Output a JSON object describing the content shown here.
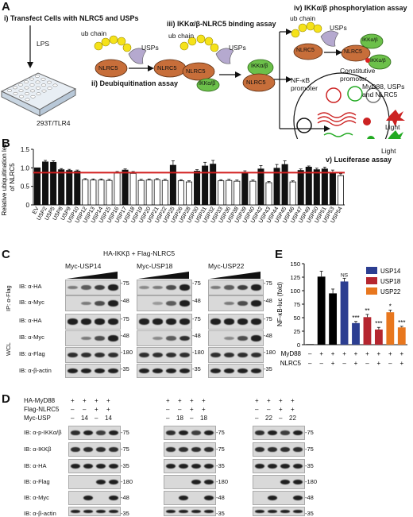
{
  "panelA": {
    "letter": "A",
    "step1": "i) Transfect Cells with NLRC5 and USPs",
    "lps": "LPS",
    "cell_line": "293T/TLR4",
    "step2": "ii) Deubiquitination assay",
    "step3": "iii) IKKα/β-NLRC5 binding assay",
    "step4": "iv) IKKα/β phosphorylation assay",
    "step5": "v) Luciferase assay",
    "ub_chain": "ub chain",
    "usps": "USPs",
    "nlrc5": "NLRC5",
    "ikk": "IKKα/β",
    "nfkb_promoter": "NF-κB promoter",
    "constitutive_promoter": "Constitutive promoter",
    "myd88_usps_nlrc5": "MyD88, USPs and NLRC5",
    "light": "Light"
  },
  "panelB": {
    "letter": "B",
    "chart_data": {
      "type": "bar",
      "ylabel": "Relative ubiquitination level of NLRC5",
      "ylim": [
        0,
        1.5
      ],
      "yticks": [
        0,
        0.5,
        1.0,
        1.5
      ],
      "ytick_labels": [
        "0",
        "0.5",
        "1.0",
        "1.5"
      ],
      "threshold": 0.87,
      "categories": [
        "EV",
        "USP2",
        "USP5",
        "USP8",
        "USP9",
        "USP10",
        "USP12",
        "USP13",
        "USP14",
        "USP15",
        "USP16",
        "USP17",
        "USP18",
        "USP19",
        "USP20",
        "USP21",
        "USP22",
        "USP25",
        "USP26",
        "USP28",
        "USP30",
        "USP31",
        "USP32",
        "USP33",
        "USP36",
        "USP38",
        "USP39",
        "USP40",
        "USP42",
        "USP43",
        "USP44",
        "USP45",
        "USP46",
        "USP47",
        "USP49",
        "USP50",
        "USP51",
        "USP53",
        "USP54"
      ],
      "values": [
        1.0,
        1.16,
        1.15,
        0.95,
        0.93,
        0.91,
        0.68,
        0.67,
        0.67,
        0.66,
        0.86,
        0.94,
        0.85,
        0.66,
        0.67,
        0.68,
        0.66,
        1.07,
        0.65,
        0.62,
        0.91,
        1.05,
        1.1,
        0.65,
        0.66,
        0.64,
        0.87,
        0.64,
        0.97,
        0.6,
        0.99,
        1.09,
        0.62,
        0.93,
        1.02,
        0.95,
        0.97,
        0.88,
        0.79
      ],
      "errors": [
        0,
        0.04,
        0.04,
        0.03,
        0.03,
        0.03,
        0.03,
        0.03,
        0.03,
        0.03,
        0.04,
        0.03,
        0.05,
        0.03,
        0.03,
        0.03,
        0.03,
        0.12,
        0.03,
        0.03,
        0.04,
        0.1,
        0.1,
        0.03,
        0.03,
        0.03,
        0.05,
        0.03,
        0.09,
        0.03,
        0.1,
        0.1,
        0.03,
        0.04,
        0.03,
        0.04,
        0.05,
        0.06,
        0.05
      ]
    }
  },
  "panelC": {
    "letter": "C",
    "header": "HA-IKKβ + Flag-NLRC5",
    "groups": [
      "Myc-USP14",
      "Myc-USP18",
      "Myc-USP22"
    ],
    "ip": "IP: α-Flag",
    "wcl": "WCL",
    "rows": [
      "IB: α-HA",
      "IB: α-Myc",
      "IB: α-HA",
      "IB: α-Myc",
      "IB: α-Flag",
      "IB: α-β-actin"
    ],
    "mw": [
      [
        "75",
        "48"
      ],
      [
        "-48"
      ],
      [
        "-75"
      ],
      [
        "-48"
      ],
      [
        "-180"
      ],
      [
        "-35"
      ]
    ],
    "mw_labels": [
      "75",
      "48",
      "48",
      "75",
      "48",
      "180",
      "35"
    ]
  },
  "panelD": {
    "letter": "D",
    "row_labels": [
      "HA-MyD88",
      "Flag-NLRC5",
      "Myc-USP"
    ],
    "g1": [
      "–",
      "14",
      "–",
      "14"
    ],
    "g2": [
      "–",
      "18",
      "–",
      "18"
    ],
    "g3": [
      "–",
      "22",
      "–",
      "22"
    ],
    "flag": [
      "–",
      "–",
      "+",
      "+"
    ],
    "plus": "+",
    "blots": [
      "IB: α-p-IKKα/β",
      "IB: α-IKKβ",
      "IB: α-HA",
      "IB: α-Flag",
      "IB: α-Myc",
      "IB: α-β-actin"
    ],
    "mw": [
      "75",
      "75",
      "35",
      "180",
      "48",
      "35"
    ]
  },
  "panelE": {
    "letter": "E",
    "chart_data": {
      "type": "bar",
      "ylabel": "NF-κB-luc (fold)",
      "ylim": [
        0,
        150
      ],
      "yticks": [
        0,
        25,
        50,
        75,
        100,
        125,
        150
      ],
      "ytick_labels": [
        "0",
        "25",
        "50",
        "75",
        "100",
        "125",
        "150"
      ],
      "legend": [
        "USP14",
        "USP18",
        "USP22"
      ],
      "legend_colors": [
        "#2c3e91",
        "#b5262f",
        "#e8771e"
      ],
      "values": [
        1,
        126,
        95,
        117,
        40,
        51,
        28,
        60,
        32
      ],
      "errors": [
        0,
        10,
        8,
        6,
        3,
        5,
        4,
        4,
        2
      ],
      "bar_colors": [
        "#000",
        "#000",
        "#000",
        "#2c3e91",
        "#2c3e91",
        "#b5262f",
        "#b5262f",
        "#e8771e",
        "#e8771e"
      ],
      "significance": [
        "",
        "",
        "",
        "NS",
        "***",
        "**",
        "***",
        "*",
        "***"
      ],
      "row_myd88": [
        "–",
        "+",
        "+",
        "+",
        "+",
        "+",
        "+",
        "+",
        "+"
      ],
      "row_nlrc5": [
        "–",
        "–",
        "+",
        "–",
        "+",
        "–",
        "+",
        "–",
        "+"
      ],
      "row_labels": [
        "MyD88",
        "NLRC5"
      ]
    }
  }
}
